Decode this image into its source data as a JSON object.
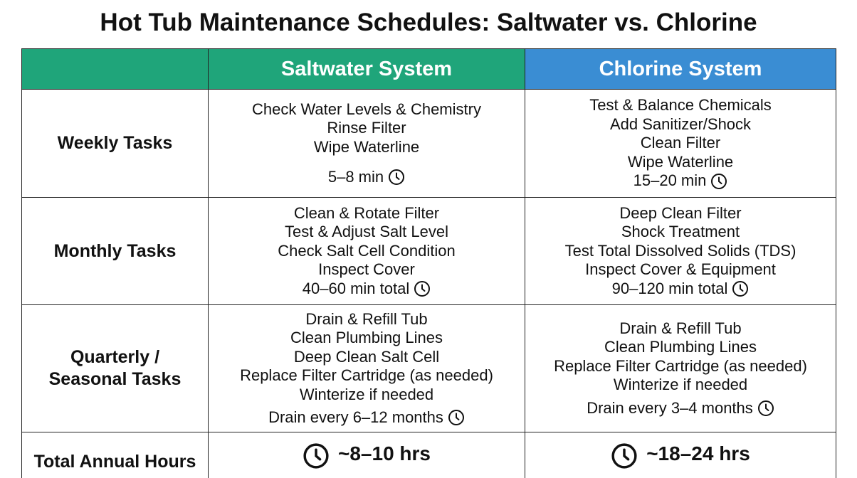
{
  "title": "Hot Tub Maintenance Schedules: Saltwater vs. Chlorine",
  "table": {
    "header": [
      "Saltwater System",
      "Chlorine System"
    ],
    "rows": [
      {
        "label": [
          "Weekly Tasks"
        ],
        "saltwater": {
          "tasks": [
            "Check Water Levels & Chemistry",
            "Rinse Filter",
            "Wipe Waterline"
          ],
          "time": "5–8 min"
        },
        "chlorine": {
          "tasks": [
            "Test & Balance Chemicals",
            "Add Sanitizer/Shock",
            "Clean Filter",
            "Wipe Waterline"
          ],
          "time": "15–20 min"
        }
      },
      {
        "label": [
          "Monthly Tasks"
        ],
        "saltwater": {
          "tasks": [
            "Clean & Rotate Filter",
            "Test & Adjust Salt Level",
            "Check Salt Cell Condition",
            "Inspect Cover"
          ],
          "time": "40–60 min total"
        },
        "chlorine": {
          "tasks": [
            "Deep Clean Filter",
            "Shock Treatment",
            "Test Total Dissolved Solids (TDS)",
            "Inspect Cover & Equipment"
          ],
          "time": "90–120 min total"
        }
      },
      {
        "label": [
          "Quarterly /",
          "Seasonal Tasks"
        ],
        "saltwater": {
          "tasks": [
            "Drain & Refill Tub",
            "Clean Plumbing Lines",
            "Deep Clean Salt Cell",
            "Replace Filter Cartridge (as needed)",
            "Winterize if needed"
          ],
          "time": "Drain every 6–12 months"
        },
        "chlorine": {
          "tasks": [
            "Drain & Refill Tub",
            "Clean Plumbing Lines",
            "Replace Filter Cartridge (as needed)",
            "Winterize if needed"
          ],
          "time": "Drain every 3–4 months"
        }
      }
    ],
    "total": {
      "label": "Total Annual Hours",
      "saltwater": "~8–10 hrs",
      "chlorine": "~18–24 hrs"
    }
  }
}
